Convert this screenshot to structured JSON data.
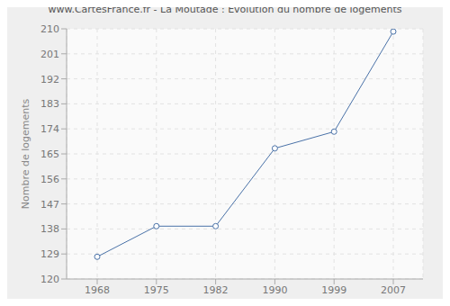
{
  "chart_data": {
    "type": "line",
    "title": "www.CartesFrance.fr - La Moutade : Evolution du nombre de logements",
    "y_label": "Nombre de logements",
    "categories": [
      "1968",
      "1975",
      "1982",
      "1990",
      "1999",
      "2007"
    ],
    "values": [
      128,
      139,
      139,
      167,
      173,
      209
    ],
    "color": "#4a72a8",
    "ylim": [
      120,
      210
    ],
    "yticks": [
      120,
      129,
      138,
      147,
      156,
      165,
      174,
      183,
      192,
      201,
      210
    ],
    "grid": true,
    "marker": "circle"
  }
}
